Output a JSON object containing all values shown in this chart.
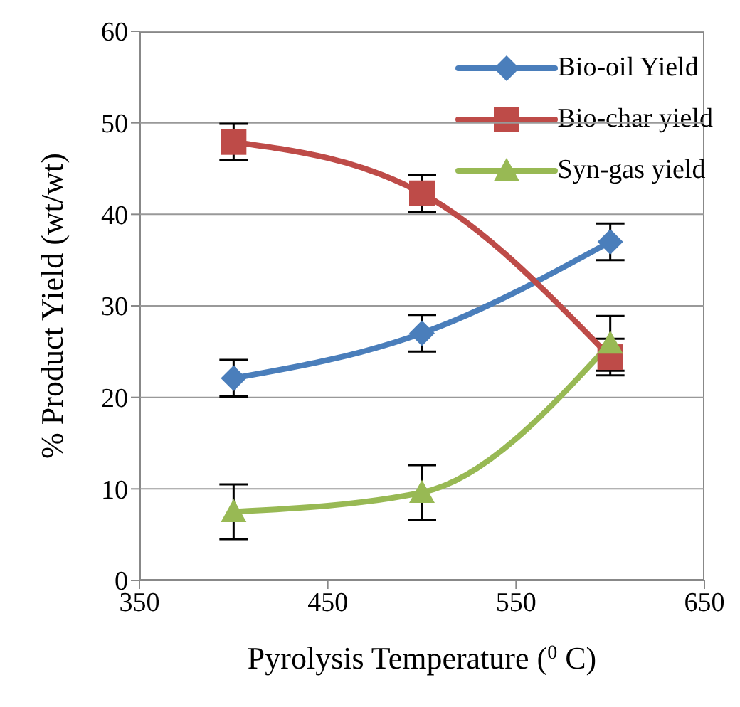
{
  "chart_data": {
    "type": "line",
    "xlabel": "Pyrolysis Temperature ($^{0}$ C)",
    "ylabel": "% Product Yield (wt/wt)",
    "x": [
      400,
      500,
      600
    ],
    "series": [
      {
        "name": "Bio-oil Yield",
        "color": "#4a7ebb",
        "values": [
          22.1,
          27.0,
          37.0
        ],
        "errors": [
          2,
          2,
          2
        ],
        "marker": "diamond"
      },
      {
        "name": "Bio-char yield",
        "color": "#be4b48",
        "values": [
          47.9,
          42.3,
          24.4
        ],
        "errors": [
          2,
          2,
          2
        ],
        "marker": "square"
      },
      {
        "name": "Syn-gas yield",
        "color": "#98b954",
        "values": [
          7.5,
          9.6,
          25.9
        ],
        "errors": [
          3,
          3,
          3
        ],
        "marker": "triangle"
      }
    ],
    "xlim": [
      350,
      650
    ],
    "xticks": [
      350,
      450,
      550,
      650
    ],
    "ylim": [
      0,
      60
    ],
    "yticks": [
      0,
      10,
      20,
      30,
      40,
      50,
      60
    ],
    "grid": "y",
    "legend": "top right"
  }
}
